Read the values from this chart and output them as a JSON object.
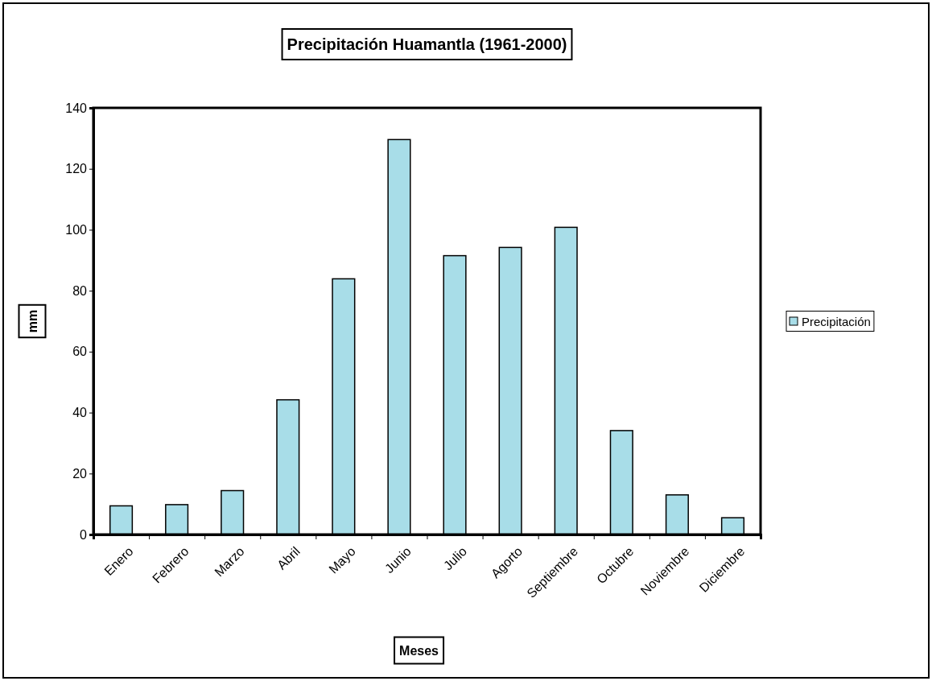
{
  "chart_data": {
    "type": "bar",
    "title": "Precipitación Huamantla (1961-2000)",
    "xlabel": "Meses",
    "ylabel": "mm",
    "categories": [
      "Enero",
      "Febrero",
      "Marzo",
      "Abril",
      "Mayo",
      "Junio",
      "Julio",
      "Agorto",
      "Septiembre",
      "Octubre",
      "Noviembre",
      "Diciembre"
    ],
    "series": [
      {
        "name": "Precipitación",
        "color": "#a8dde8",
        "values": [
          9.4,
          9.8,
          14.4,
          44.2,
          83.9,
          129.6,
          91.5,
          94.2,
          100.8,
          34.1,
          13.0,
          5.5
        ]
      }
    ],
    "ylim": [
      0,
      140
    ],
    "yticks": [
      0,
      20,
      40,
      60,
      80,
      100,
      120,
      140
    ],
    "legend": "right"
  }
}
